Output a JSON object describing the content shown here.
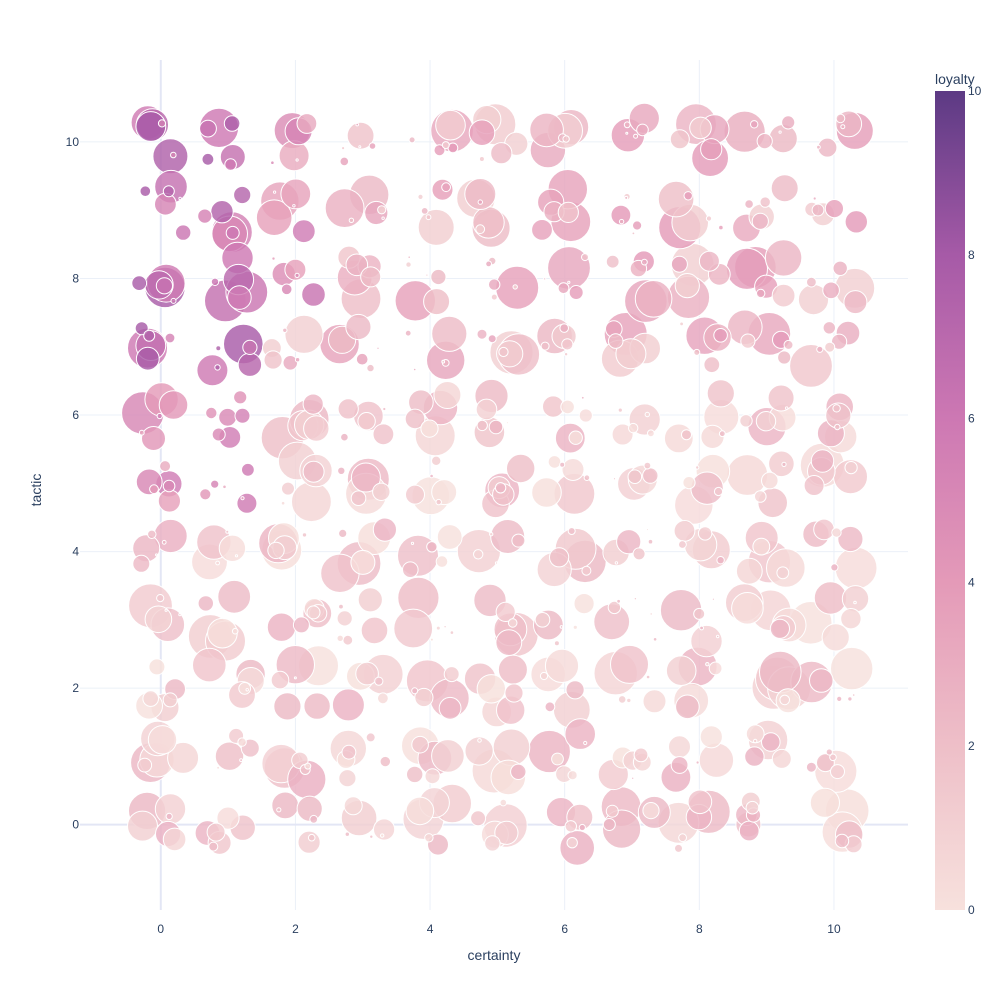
{
  "chart_data": {
    "type": "scatter",
    "variant": "bubble",
    "title": "",
    "xlabel": "certainty",
    "ylabel": "tactic",
    "xlim": [
      -1.2,
      11.1
    ],
    "ylim": [
      -1.25,
      11.2
    ],
    "x_ticks": [
      0,
      2,
      4,
      6,
      8,
      10
    ],
    "y_ticks": [
      0,
      2,
      4,
      6,
      8,
      10
    ],
    "grid": true,
    "colorbar": {
      "title": "loyalty",
      "min": 0,
      "max": 10,
      "ticks": [
        0,
        2,
        4,
        6,
        8,
        10
      ],
      "colorscale": [
        "#f7e1dd",
        "#eebfc8",
        "#e49ab8",
        "#cd78b3",
        "#a65aa7",
        "#5c3a84"
      ]
    },
    "marker_outline": "#ffffff",
    "grid_values": [
      0,
      1,
      2,
      3,
      4,
      5,
      6,
      7,
      8,
      9,
      10
    ],
    "points_per_cell": 6,
    "jitter_range": 0.35,
    "size_range": [
      1,
      22
    ],
    "loyalty_by_tactic_and_certainty_estimate": "loyalty is highest (about 5-8) at certainty 0-1 and tactic 7-10, declining toward 0-2 elsewhere"
  }
}
